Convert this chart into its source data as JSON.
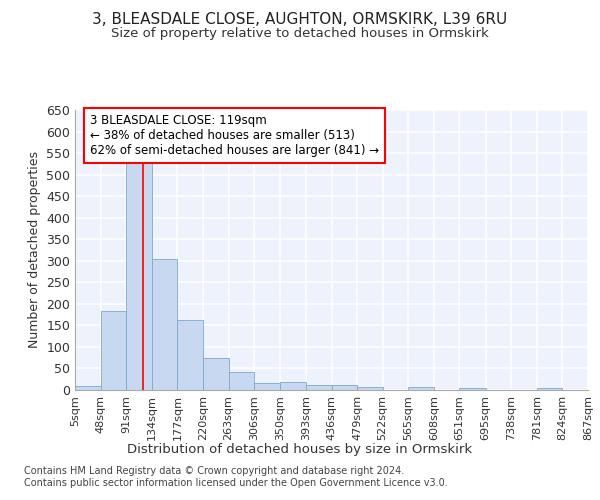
{
  "title": "3, BLEASDALE CLOSE, AUGHTON, ORMSKIRK, L39 6RU",
  "subtitle": "Size of property relative to detached houses in Ormskirk",
  "xlabel": "Distribution of detached houses by size in Ormskirk",
  "ylabel": "Number of detached properties",
  "footer_line1": "Contains HM Land Registry data © Crown copyright and database right 2024.",
  "footer_line2": "Contains public sector information licensed under the Open Government Licence v3.0.",
  "bar_edges": [
    5,
    48,
    91,
    134,
    177,
    220,
    263,
    306,
    350,
    393,
    436,
    479,
    522,
    565,
    608,
    651,
    695,
    738,
    781,
    824,
    867
  ],
  "bar_values": [
    10,
    183,
    533,
    304,
    163,
    74,
    41,
    17,
    19,
    11,
    11,
    8,
    0,
    7,
    0,
    5,
    0,
    0,
    5,
    0
  ],
  "bar_color": "#c8d8f0",
  "bar_edgecolor": "#7aaad0",
  "red_line_x": 119,
  "annotation_text": "3 BLEASDALE CLOSE: 119sqm\n← 38% of detached houses are smaller (513)\n62% of semi-detached houses are larger (841) →",
  "annotation_box_color": "white",
  "annotation_box_edgecolor": "red",
  "ylim": [
    0,
    650
  ],
  "yticks": [
    0,
    50,
    100,
    150,
    200,
    250,
    300,
    350,
    400,
    450,
    500,
    550,
    600,
    650
  ],
  "background_color": "#edf2fc",
  "grid_color": "white",
  "title_fontsize": 11,
  "subtitle_fontsize": 9.5,
  "ylabel_fontsize": 9,
  "xlabel_fontsize": 9.5,
  "tick_label_fontsize": 8,
  "ytick_fontsize": 9,
  "footer_fontsize": 7,
  "annot_fontsize": 8.5
}
